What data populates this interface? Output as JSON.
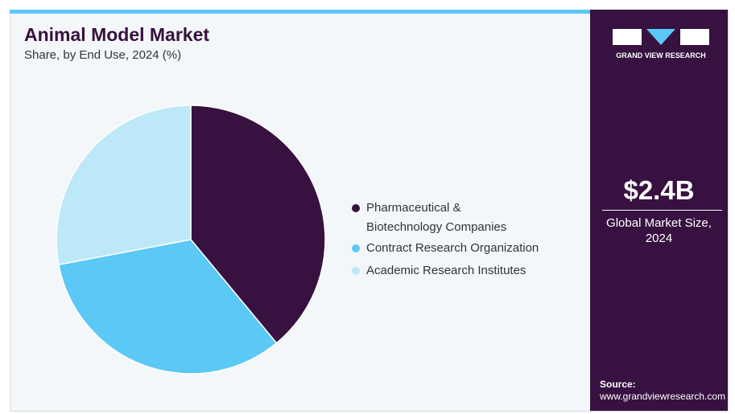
{
  "chart_data": {
    "type": "pie",
    "title": "Animal Model Market",
    "subtitle": "Share, by End Use, 2024 (%)",
    "categories": [
      "Pharmaceutical &\nBiotechnology Companies",
      "Contract Research Organization",
      "Academic Research Institutes"
    ],
    "values": [
      39,
      33,
      28
    ],
    "colors": [
      "#37113f",
      "#5bc8f5",
      "#bde8f8"
    ]
  },
  "panel": {
    "brand": "GRAND VIEW RESEARCH",
    "market_size": "$2.4B",
    "market_size_label": "Global Market Size,\n2024",
    "source_label": "Source:",
    "source_url": "www.grandviewresearch.com"
  }
}
